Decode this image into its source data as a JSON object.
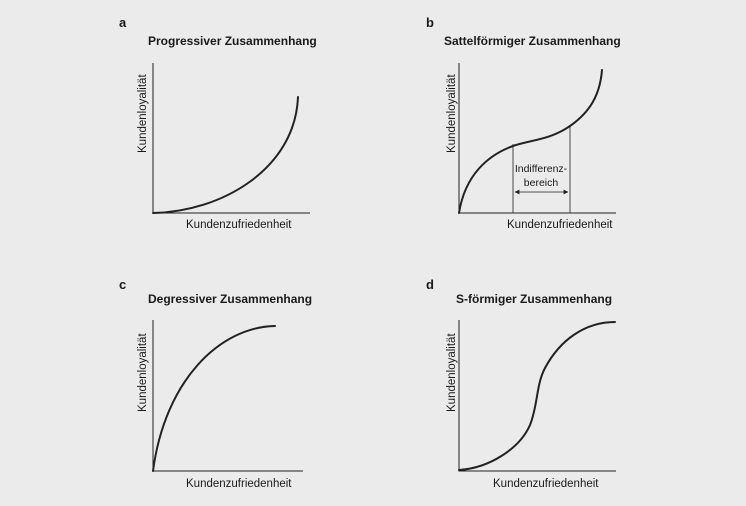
{
  "colors": {
    "background": "#ebebeb",
    "ink": "#222222"
  },
  "panels": [
    {
      "letter": "a",
      "title": "Progressiver Zusammenhang",
      "ylabel": "Kundenloyalität",
      "xlabel": "Kundenzufriedenheit"
    },
    {
      "letter": "b",
      "title": "Sattelförmiger Zusammenhang",
      "ylabel": "Kundenloyalität",
      "xlabel": "Kundenzufriedenheit",
      "annotation": {
        "line1": "Indifferenz-",
        "line2": "bereich"
      }
    },
    {
      "letter": "c",
      "title": "Degressiver Zusammenhang",
      "ylabel": "Kundenloyalität",
      "xlabel": "Kundenzufriedenheit"
    },
    {
      "letter": "d",
      "title": "S-förmiger Zusammenhang",
      "ylabel": "Kundenloyalität",
      "xlabel": "Kundenzufriedenheit"
    }
  ]
}
